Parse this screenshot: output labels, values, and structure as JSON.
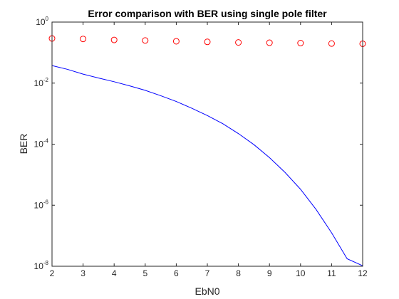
{
  "chart_data": {
    "type": "line",
    "title": "Error comparison with BER using single pole filter",
    "xlabel": "EbN0",
    "ylabel": "BER",
    "xlim": [
      2,
      12
    ],
    "ylim": [
      1e-08,
      1
    ],
    "yscale": "log",
    "grid": false,
    "x_ticks": [
      2,
      3,
      4,
      5,
      6,
      7,
      8,
      9,
      10,
      11,
      12
    ],
    "y_ticks": [
      {
        "base": "10",
        "exp": "0",
        "value": 1
      },
      {
        "base": "10",
        "exp": "-2",
        "value": 0.01
      },
      {
        "base": "10",
        "exp": "-4",
        "value": 0.0001
      },
      {
        "base": "10",
        "exp": "-6",
        "value": 1e-06
      },
      {
        "base": "10",
        "exp": "-8",
        "value": 1e-08
      }
    ],
    "series": [
      {
        "style": "markers",
        "marker": "circle",
        "color": "#ff0000",
        "x": [
          2,
          3,
          4,
          5,
          6,
          7,
          8,
          9,
          10,
          11,
          12
        ],
        "y": [
          0.29,
          0.28,
          0.26,
          0.25,
          0.235,
          0.225,
          0.215,
          0.21,
          0.205,
          0.198,
          0.195
        ]
      },
      {
        "style": "line",
        "color": "#0000ff",
        "x": [
          2,
          2.5,
          3,
          3.5,
          4,
          4.5,
          5,
          5.5,
          6,
          6.5,
          7,
          7.5,
          8,
          8.5,
          9,
          9.5,
          10,
          10.5,
          11,
          11.5,
          12
        ],
        "y": [
          0.0375,
          0.0282,
          0.0197,
          0.0147,
          0.0111,
          0.0081,
          0.0058,
          0.00387,
          0.0025,
          0.0015,
          0.000866,
          0.000466,
          0.000222,
          9.63e-05,
          3.63e-05,
          1.19e-05,
          3.33e-06,
          7.26e-07,
          1.25e-07,
          1.76e-08,
          1.04e-08
        ]
      }
    ]
  }
}
